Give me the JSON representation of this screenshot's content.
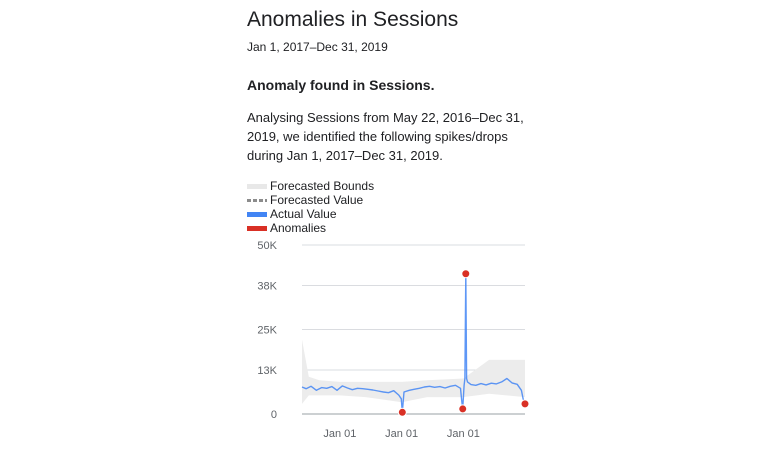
{
  "card": {
    "title": "Anomalies in Sessions",
    "date_range": "Jan 1, 2017–Dec 31, 2019",
    "heading": "Anomaly found in Sessions.",
    "description_lines": [
      "Analysing Sessions from May 22, 2016–Dec 31,",
      "2019, we identified the following spikes/drops",
      "during Jan 1, 2017–Dec 31, 2019."
    ]
  },
  "legend": [
    {
      "label": "Forecasted Bounds",
      "color": "#e8e8e8",
      "icon": "bounds-swatch"
    },
    {
      "label": "Forecasted Value",
      "color": "#8c8c8c",
      "icon": "dashed-line-swatch"
    },
    {
      "label": "Actual Value",
      "color": "#4285f4",
      "icon": "line-swatch"
    },
    {
      "label": "Anomalies",
      "color": "#d93025",
      "icon": "dot-swatch"
    }
  ],
  "chart_data": {
    "type": "line",
    "y_ticks": [
      "50K",
      "38K",
      "25K",
      "13K",
      "0"
    ],
    "y_tick_values": [
      50000,
      38000,
      25000,
      13000,
      0
    ],
    "x_ticks": [
      "Jan 01",
      "Jan 01",
      "Jan 01"
    ],
    "x_tick_values": [
      "2017-01-01",
      "2018-01-01",
      "2019-01-01"
    ],
    "ylim": [
      0,
      50000
    ],
    "xlim": [
      "2016-05-22",
      "2019-12-31"
    ],
    "colors": {
      "actual": "#4285f4",
      "bounds": "#ececec",
      "anomaly": "#d93025",
      "grid": "#dadce0",
      "axis": "#9aa0a6"
    },
    "series": [
      {
        "name": "Actual Value",
        "x": [
          "2016-05-22",
          "2016-06-15",
          "2016-07-15",
          "2016-08-15",
          "2016-09-15",
          "2016-10-15",
          "2016-11-15",
          "2016-12-15",
          "2017-01-15",
          "2017-02-15",
          "2017-03-15",
          "2017-04-15",
          "2017-05-15",
          "2017-06-15",
          "2017-07-15",
          "2017-08-15",
          "2017-09-15",
          "2017-10-15",
          "2017-11-15",
          "2017-12-15",
          "2017-12-30",
          "2018-01-05",
          "2018-01-15",
          "2018-02-15",
          "2018-03-15",
          "2018-04-15",
          "2018-05-15",
          "2018-06-15",
          "2018-07-15",
          "2018-08-15",
          "2018-09-15",
          "2018-10-15",
          "2018-11-15",
          "2018-12-15",
          "2018-12-22",
          "2018-12-28",
          "2019-01-05",
          "2019-01-10",
          "2019-01-15",
          "2019-01-20",
          "2019-01-25",
          "2019-02-15",
          "2019-03-15",
          "2019-04-15",
          "2019-05-15",
          "2019-06-15",
          "2019-07-15",
          "2019-08-15",
          "2019-09-15",
          "2019-10-15",
          "2019-11-15",
          "2019-12-10",
          "2019-12-20",
          "2019-12-31"
        ],
        "values": [
          8000,
          7500,
          8200,
          7000,
          7800,
          7600,
          8100,
          7000,
          8300,
          7700,
          7200,
          7600,
          7500,
          7300,
          7100,
          6800,
          6500,
          6300,
          6900,
          5600,
          4500,
          500,
          6500,
          7000,
          7300,
          7600,
          8000,
          8200,
          7900,
          8100,
          7700,
          8200,
          8500,
          7600,
          4000,
          1500,
          8500,
          10500,
          41500,
          10500,
          9500,
          8700,
          8500,
          9000,
          8600,
          9100,
          8900,
          9500,
          10500,
          9200,
          8800,
          7000,
          4500,
          3000
        ]
      }
    ],
    "bounds": {
      "x": [
        "2016-05-22",
        "2016-07-01",
        "2016-09-01",
        "2017-01-01",
        "2017-06-01",
        "2018-01-01",
        "2018-06-01",
        "2019-01-01",
        "2019-06-01",
        "2019-12-31"
      ],
      "upper": [
        22000,
        11000,
        10000,
        9500,
        9500,
        9500,
        10000,
        10500,
        16000,
        16000
      ],
      "lower": [
        3000,
        5500,
        5500,
        5500,
        5000,
        3500,
        5000,
        5000,
        6000,
        5000
      ]
    },
    "anomalies": [
      {
        "x": "2018-01-05",
        "value": 500
      },
      {
        "x": "2018-12-28",
        "value": 1500
      },
      {
        "x": "2019-01-15",
        "value": 41500
      },
      {
        "x": "2019-12-31",
        "value": 3000
      }
    ]
  }
}
